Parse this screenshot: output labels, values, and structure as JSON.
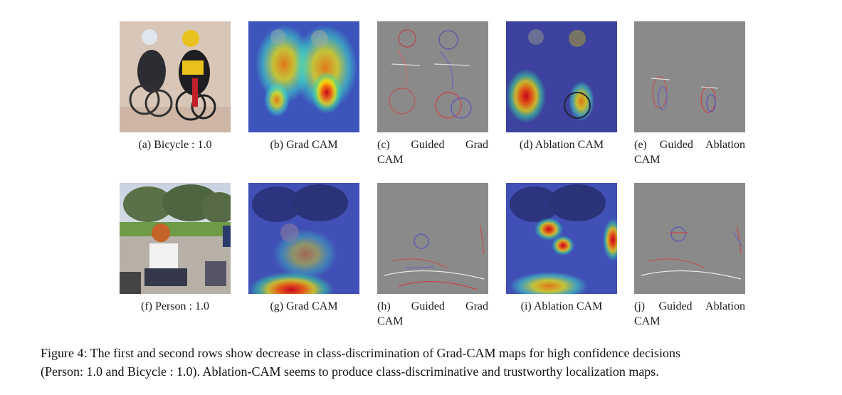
{
  "figure": {
    "row1": {
      "a": {
        "caption": "(a) Bicycle : 1.0"
      },
      "b": {
        "caption": "(b) Grad CAM"
      },
      "c": {
        "caption_line1": "(c) Guided Grad",
        "caption_line2": "CAM"
      },
      "d": {
        "caption": "(d) Ablation CAM"
      },
      "e": {
        "caption_line1": "(e) Guided Ablation",
        "caption_line2": "CAM"
      }
    },
    "row2": {
      "f": {
        "caption": "(f) Person : 1.0"
      },
      "g": {
        "caption": "(g) Grad CAM"
      },
      "h": {
        "caption_line1": "(h) Guided Grad",
        "caption_line2": "CAM"
      },
      "i": {
        "caption": "(i) Ablation CAM"
      },
      "j": {
        "caption_line1": "(j) Guided Ablation",
        "caption_line2": "CAM"
      }
    },
    "caption_line1": "Figure 4: The first and second rows show decrease in class-discrimination of Grad-CAM maps for high confidence decisions",
    "caption_line2": "(Person: 1.0 and Bicycle : 1.0). Ablation-CAM seems to produce class-discriminative and trustworthy localization maps."
  }
}
